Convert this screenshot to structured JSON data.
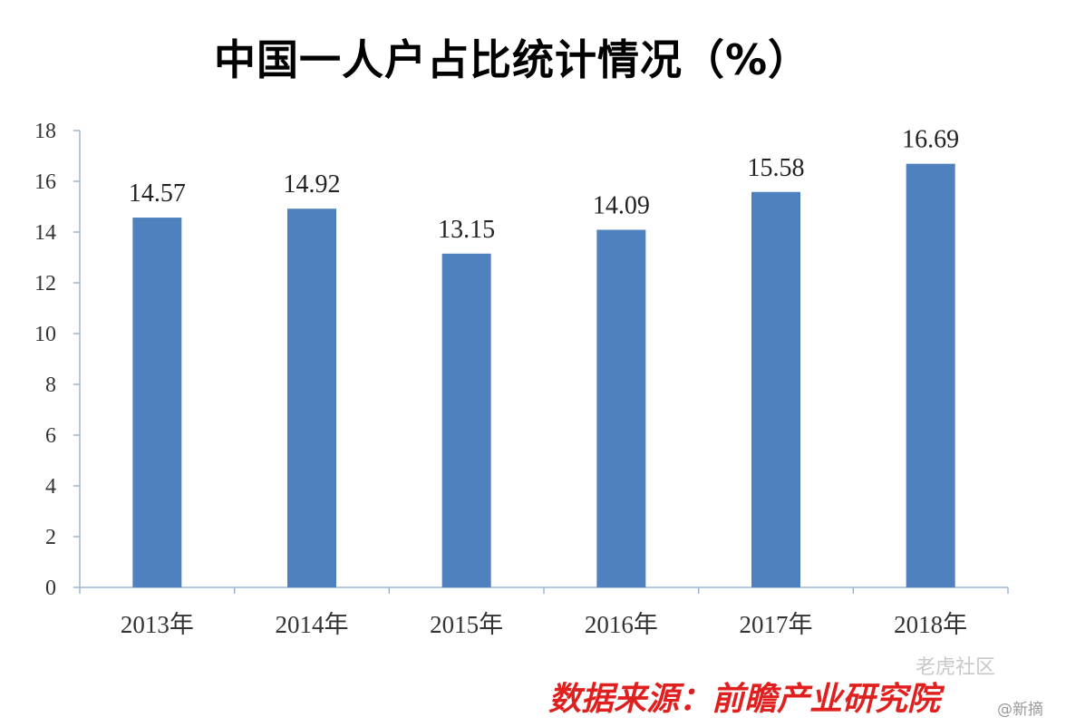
{
  "chart_data": {
    "type": "bar",
    "title": "中国一人户占比统计情况（%）",
    "categories": [
      "2013年",
      "2014年",
      "2015年",
      "2016年",
      "2017年",
      "2018年"
    ],
    "values": [
      14.57,
      14.92,
      13.15,
      14.09,
      15.58,
      16.69
    ],
    "data_labels": [
      "14.57",
      "14.92",
      "13.15",
      "14.09",
      "15.58",
      "16.69"
    ],
    "ylim": [
      0,
      18
    ],
    "yticks": [
      0,
      2,
      4,
      6,
      8,
      10,
      12,
      14,
      16,
      18
    ],
    "xlabel": "",
    "ylabel": "",
    "grid": false,
    "legend": "none",
    "bar_color": "#4e81bd",
    "axis_color": "#9cb5d6"
  },
  "source": "数据来源：前瞻产业研究院",
  "source_color": "#e0201f",
  "watermark": "老虎社区",
  "watermark_sub": "@新摘"
}
